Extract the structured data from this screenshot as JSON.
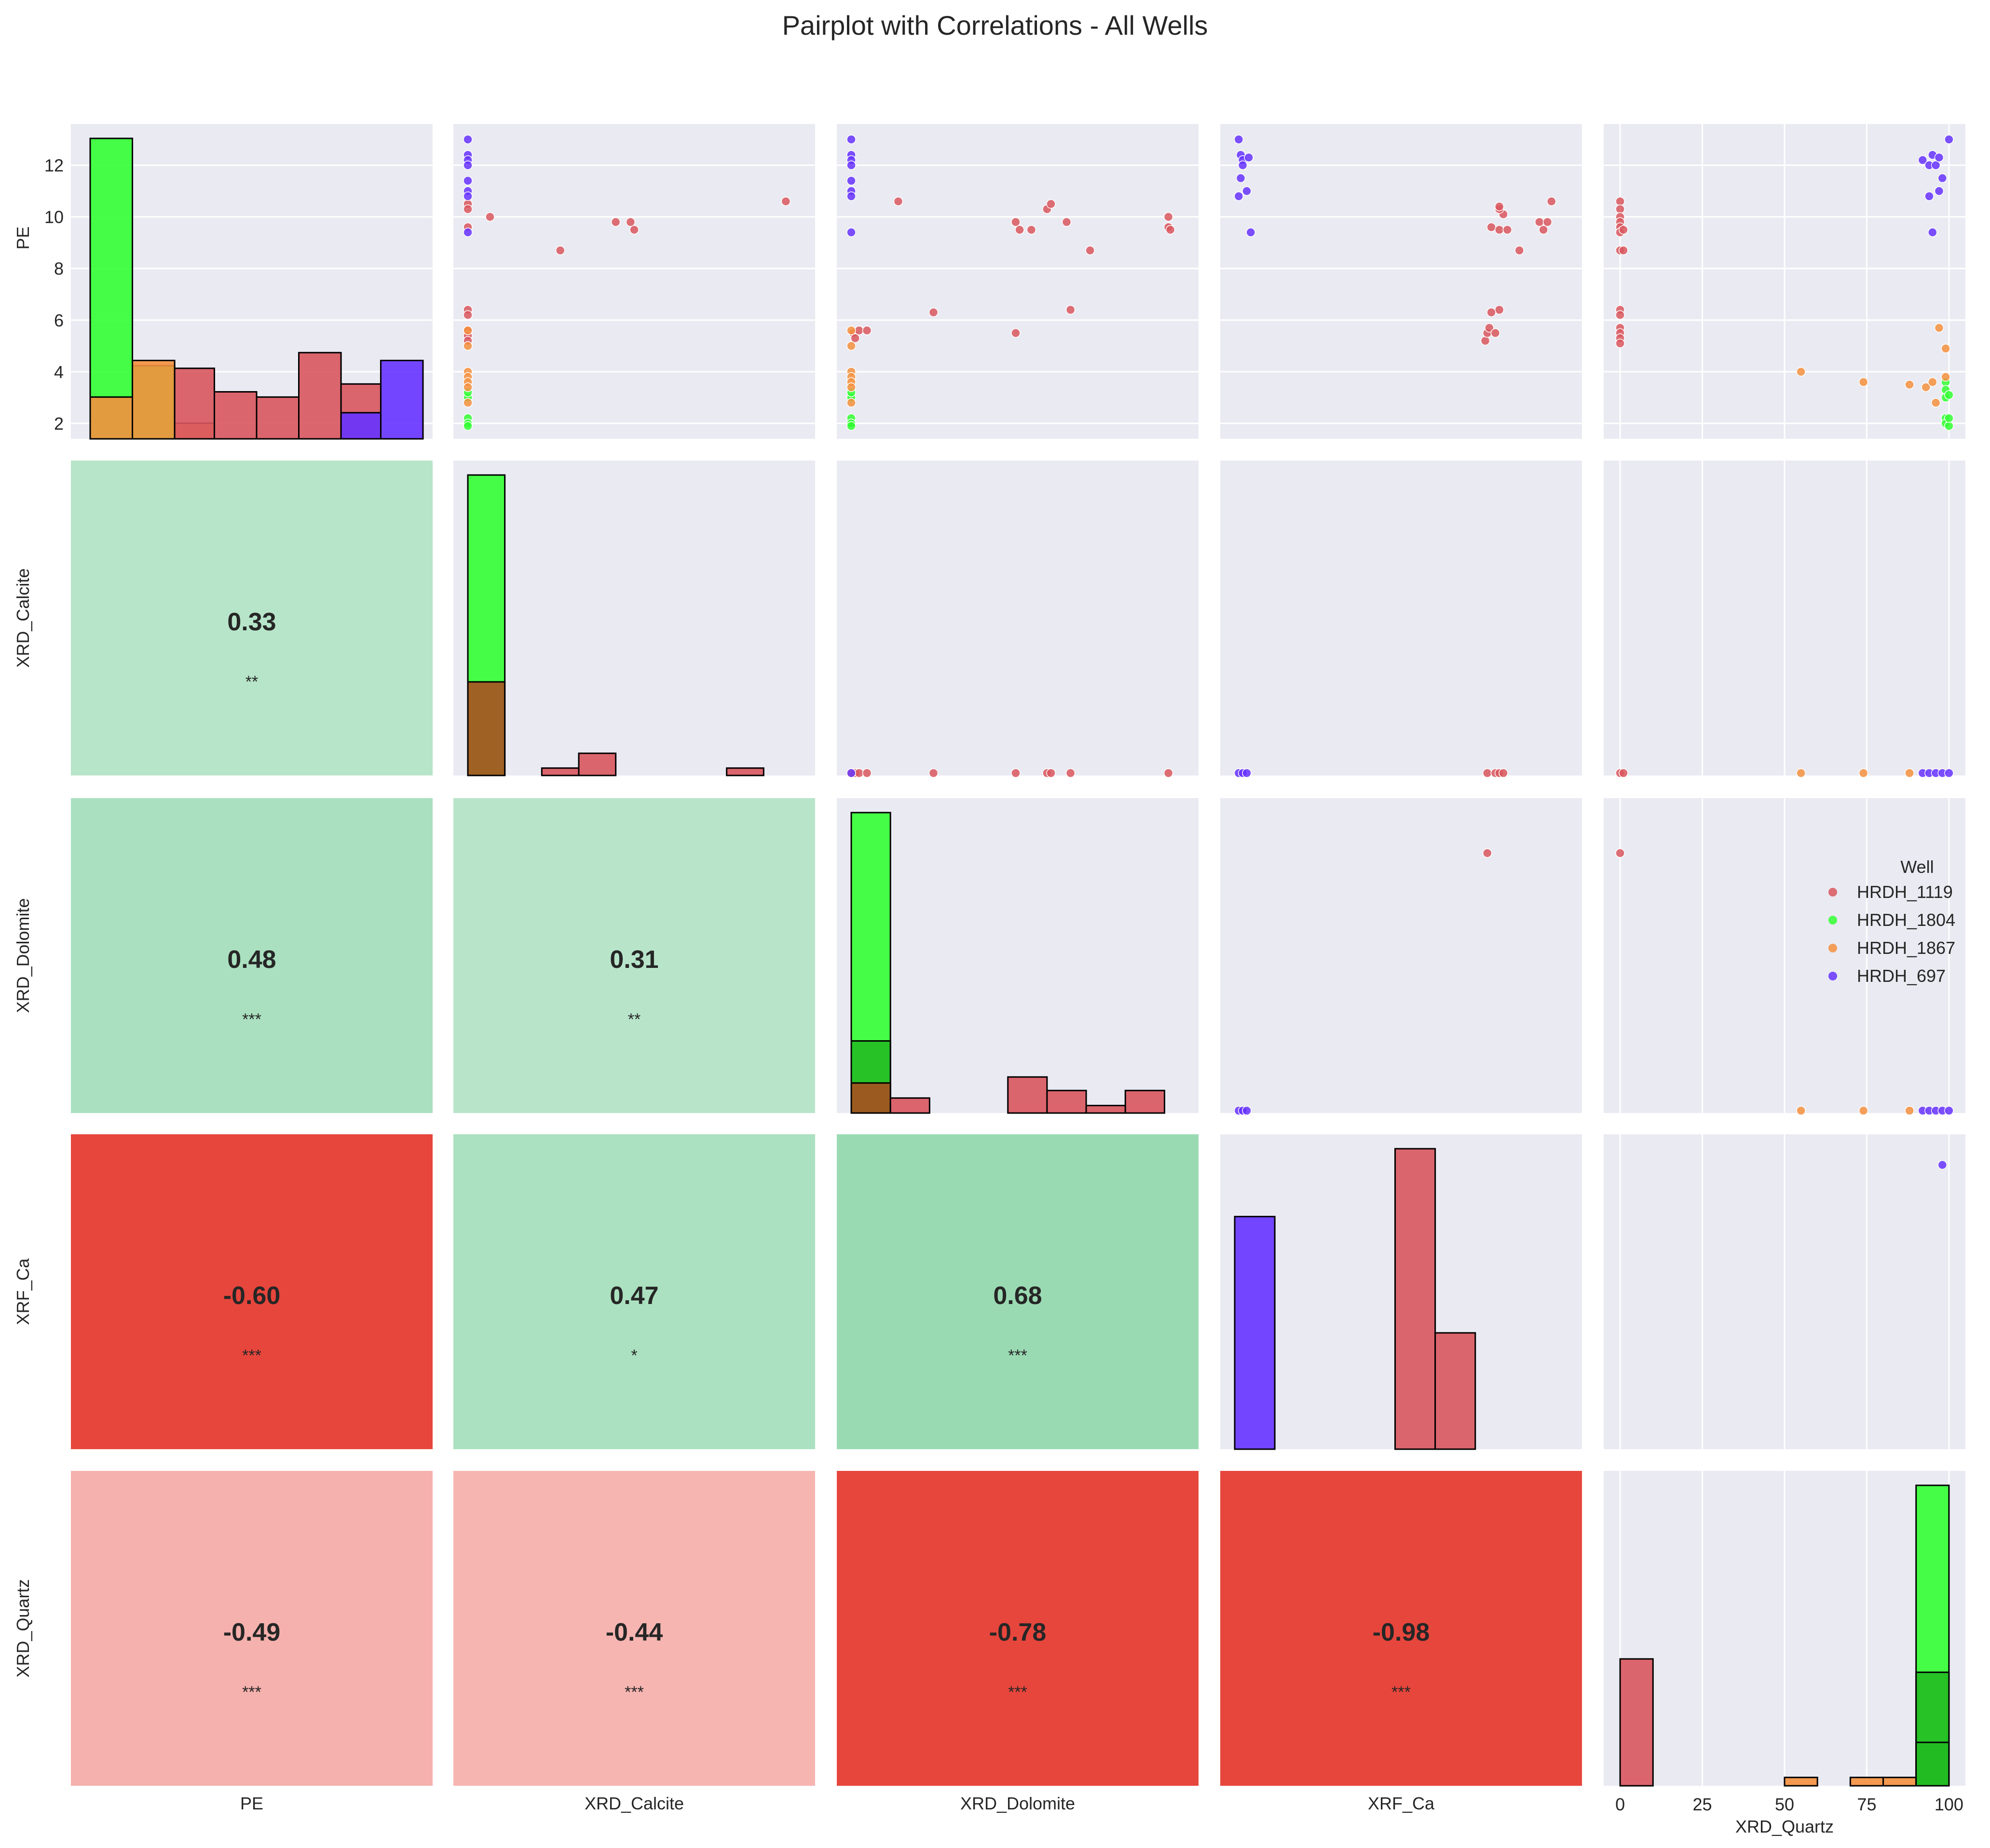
{
  "figure": {
    "title": "Pairplot with Correlations - All Wells"
  },
  "colors": {
    "panel_bg": "#EAEAF2",
    "grid": "#FFFFFF",
    "HRDH_1119": "#D9575E",
    "HRDH_1804": "#33FF33",
    "HRDH_1867": "#F4903E",
    "HRDH_697": "#6633FF",
    "overlap_brown": "#A85020",
    "overlap_dark_green": "#22BB22"
  },
  "legend": {
    "title": "Well",
    "placement": "center-right",
    "items": [
      {
        "label": "HRDH_1119",
        "color_key": "HRDH_1119"
      },
      {
        "label": "HRDH_1804",
        "color_key": "HRDH_1804"
      },
      {
        "label": "HRDH_1867",
        "color_key": "HRDH_1867"
      },
      {
        "label": "HRDH_697",
        "color_key": "HRDH_697"
      }
    ]
  },
  "chart_data": {
    "type": "pairplot",
    "variables": [
      "PE",
      "XRD_Calcite",
      "XRD_Dolomite",
      "XRF_Ca",
      "XRD_Quartz"
    ],
    "series_names": [
      "HRDH_1119",
      "HRDH_1804",
      "HRDH_1867",
      "HRDH_697"
    ],
    "y_axis": {
      "variable": "PE",
      "ticks": [
        2,
        4,
        6,
        8,
        10,
        12
      ],
      "range": [
        1.4,
        13.6
      ]
    },
    "x_axis": {
      "variable": "XRD_Quartz",
      "ticks": [
        0,
        25,
        50,
        75,
        100
      ],
      "range": [
        -5,
        105
      ]
    },
    "correlations": [
      {
        "row": "XRD_Calcite",
        "col": "PE",
        "r": "0.33",
        "sig": "**",
        "value": 0.33
      },
      {
        "row": "XRD_Dolomite",
        "col": "PE",
        "r": "0.48",
        "sig": "***",
        "value": 0.48
      },
      {
        "row": "XRD_Dolomite",
        "col": "XRD_Calcite",
        "r": "0.31",
        "sig": "**",
        "value": 0.31
      },
      {
        "row": "XRF_Ca",
        "col": "PE",
        "r": "-0.60",
        "sig": "***",
        "value": -0.6
      },
      {
        "row": "XRF_Ca",
        "col": "XRD_Calcite",
        "r": "0.47",
        "sig": "*",
        "value": 0.47
      },
      {
        "row": "XRF_Ca",
        "col": "XRD_Dolomite",
        "r": "0.68",
        "sig": "***",
        "value": 0.68
      },
      {
        "row": "XRD_Quartz",
        "col": "PE",
        "r": "-0.49",
        "sig": "***",
        "value": -0.49
      },
      {
        "row": "XRD_Quartz",
        "col": "XRD_Calcite",
        "r": "-0.44",
        "sig": "***",
        "value": -0.44
      },
      {
        "row": "XRD_Quartz",
        "col": "XRD_Dolomite",
        "r": "-0.78",
        "sig": "***",
        "value": -0.78
      },
      {
        "row": "XRD_Quartz",
        "col": "XRF_Ca",
        "r": "-0.98",
        "sig": "***",
        "value": -0.98
      }
    ],
    "histograms": {
      "PE": [
        {
          "series": "HRDH_1804",
          "color_key": "HRDH_1804",
          "bins": [
            [
              1.4,
              3.1,
              11.5
            ],
            [
              3.1,
              4.8,
              2.8
            ]
          ]
        },
        {
          "series": "HRDH_1867",
          "color_key": "HRDH_1867",
          "bins": [
            [
              1.4,
              3.1,
              1.6
            ],
            [
              3.1,
              4.8,
              3.0
            ],
            [
              4.8,
              6.4,
              0.6
            ]
          ]
        },
        {
          "series": "HRDH_1119",
          "color_key": "HRDH_1119",
          "bins": [
            [
              4.8,
              6.4,
              2.7
            ],
            [
              6.4,
              8.1,
              1.8
            ],
            [
              8.1,
              9.8,
              1.6
            ],
            [
              9.8,
              11.5,
              3.3
            ],
            [
              11.5,
              13.1,
              2.1
            ]
          ]
        },
        {
          "series": "HRDH_697",
          "color_key": "HRDH_697",
          "bins": [
            [
              11.5,
              13.1,
              1.0
            ],
            [
              13.1,
              14.8,
              3.0
            ]
          ]
        }
      ],
      "XRD_Calcite": [
        {
          "series": "HRDH_1804",
          "color_key": "HRDH_1804",
          "bins": [
            [
              0,
              1,
              12.2
            ]
          ]
        },
        {
          "series": "overlap",
          "color_key": "overlap_brown",
          "bins": [
            [
              0,
              1,
              3.8
            ]
          ]
        },
        {
          "series": "HRDH_1119",
          "color_key": "HRDH_1119",
          "bins": [
            [
              2,
              3,
              0.3
            ],
            [
              3,
              4,
              0.9
            ],
            [
              7,
              8,
              0.3
            ]
          ]
        }
      ],
      "XRD_Dolomite": [
        {
          "series": "HRDH_1804",
          "color_key": "HRDH_1804",
          "bins": [
            [
              0,
              1,
              10.0
            ]
          ]
        },
        {
          "series": "overlap",
          "color_key": "overlap_dark_green",
          "bins": [
            [
              0,
              1,
              2.4
            ]
          ]
        },
        {
          "series": "overlap",
          "color_key": "overlap_brown",
          "bins": [
            [
              0,
              1,
              1.0
            ]
          ]
        },
        {
          "series": "HRDH_1119",
          "color_key": "HRDH_1119",
          "bins": [
            [
              1,
              2,
              0.5
            ],
            [
              4,
              5,
              1.2
            ],
            [
              5,
              6,
              0.75
            ],
            [
              6,
              7,
              0.25
            ],
            [
              7,
              8,
              0.75
            ]
          ]
        }
      ],
      "XRF_Ca": [
        {
          "series": "HRDH_697",
          "color_key": "HRDH_697",
          "bins": [
            [
              0,
              1,
              2.4
            ]
          ]
        },
        {
          "series": "HRDH_1119",
          "color_key": "HRDH_1119",
          "bins": [
            [
              4,
              5,
              3.1
            ],
            [
              5,
              6,
              1.2
            ]
          ]
        }
      ],
      "XRD_Quartz": [
        {
          "series": "HRDH_1119",
          "color_key": "HRDH_1119",
          "bins": [
            [
              0,
              10,
              3.8
            ]
          ]
        },
        {
          "series": "HRDH_1867",
          "color_key": "HRDH_1867",
          "bins": [
            [
              50,
              60,
              0.25
            ],
            [
              70,
              80,
              0.25
            ],
            [
              80,
              90,
              0.25
            ]
          ]
        },
        {
          "series": "HRDH_1804",
          "color_key": "HRDH_1804",
          "bins": [
            [
              90,
              100,
              9.0
            ]
          ]
        },
        {
          "series": "overlap",
          "color_key": "overlap_dark_green",
          "bins": [
            [
              90,
              100,
              3.4
            ]
          ]
        },
        {
          "series": "overlap",
          "color_key": "overlap_dark_green",
          "bins": [
            [
              90,
              100,
              1.3
            ]
          ]
        }
      ]
    },
    "scatter": {
      "PE~XRD_Calcite": {
        "HRDH_1119": [
          [
            0,
            10.5
          ],
          [
            0,
            10.3
          ],
          [
            0,
            9.6
          ],
          [
            0,
            6.4
          ],
          [
            0,
            6.2
          ],
          [
            0,
            5.6
          ],
          [
            0,
            5.4
          ],
          [
            0,
            5.2
          ],
          [
            0.6,
            10.0
          ],
          [
            2.5,
            8.7
          ],
          [
            4.0,
            9.8
          ],
          [
            4.4,
            9.8
          ],
          [
            4.5,
            9.5
          ],
          [
            8.6,
            10.6
          ]
        ],
        "HRDH_1804": [
          [
            0,
            2.2
          ],
          [
            0,
            2.0
          ],
          [
            0,
            1.9
          ],
          [
            0,
            3.0
          ],
          [
            0,
            3.2
          ]
        ],
        "HRDH_1867": [
          [
            0,
            5.0
          ],
          [
            0,
            4.0
          ],
          [
            0,
            3.8
          ],
          [
            0,
            3.6
          ],
          [
            0,
            3.4
          ],
          [
            0,
            2.8
          ],
          [
            0,
            5.6
          ]
        ],
        "HRDH_697": [
          [
            0,
            13.0
          ],
          [
            0,
            12.4
          ],
          [
            0,
            12.2
          ],
          [
            0,
            12.0
          ],
          [
            0,
            11.4
          ],
          [
            0,
            11.0
          ],
          [
            0,
            10.8
          ],
          [
            0,
            9.4
          ]
        ]
      },
      "PE~XRD_Dolomite": {
        "HRDH_1119": [
          [
            0.05,
            5.5
          ],
          [
            0.1,
            5.3
          ],
          [
            0.2,
            5.6
          ],
          [
            0.4,
            5.6
          ],
          [
            1.2,
            10.6
          ],
          [
            2.1,
            6.3
          ],
          [
            4.2,
            5.5
          ],
          [
            4.2,
            9.8
          ],
          [
            4.3,
            9.5
          ],
          [
            4.6,
            9.5
          ],
          [
            5.0,
            10.3
          ],
          [
            5.1,
            10.5
          ],
          [
            5.5,
            9.8
          ],
          [
            5.6,
            6.4
          ],
          [
            6.1,
            8.7
          ],
          [
            8.1,
            9.6
          ],
          [
            8.1,
            10.0
          ],
          [
            8.15,
            9.5
          ]
        ],
        "HRDH_1804": [
          [
            0,
            2.2
          ],
          [
            0,
            2.0
          ],
          [
            0,
            1.9
          ],
          [
            0,
            3.0
          ],
          [
            0,
            3.2
          ]
        ],
        "HRDH_1867": [
          [
            0,
            5.6
          ],
          [
            0,
            5.0
          ],
          [
            0,
            4.0
          ],
          [
            0,
            3.8
          ],
          [
            0,
            3.6
          ],
          [
            0,
            3.4
          ],
          [
            0,
            2.8
          ]
        ],
        "HRDH_697": [
          [
            0,
            13.0
          ],
          [
            0,
            12.4
          ],
          [
            0,
            12.2
          ],
          [
            0,
            12.0
          ],
          [
            0,
            11.4
          ],
          [
            0,
            11.0
          ],
          [
            0,
            10.8
          ],
          [
            0,
            9.4
          ]
        ]
      },
      "PE~XRF_Ca": {
        "HRDH_1119": [
          [
            6.25,
            5.2
          ],
          [
            6.3,
            5.5
          ],
          [
            6.35,
            5.7
          ],
          [
            6.5,
            5.5
          ],
          [
            6.6,
            6.4
          ],
          [
            6.4,
            6.3
          ],
          [
            6.4,
            9.6
          ],
          [
            6.6,
            9.5
          ],
          [
            6.7,
            10.1
          ],
          [
            6.6,
            10.3
          ],
          [
            6.6,
            10.4
          ],
          [
            6.8,
            9.5
          ],
          [
            7.1,
            8.7
          ],
          [
            7.6,
            9.8
          ],
          [
            7.7,
            9.5
          ],
          [
            7.8,
            9.8
          ],
          [
            7.9,
            10.6
          ]
        ],
        "HRDH_697": [
          [
            0.1,
            13.0
          ],
          [
            0.15,
            12.4
          ],
          [
            0.2,
            12.2
          ],
          [
            0.2,
            12.0
          ],
          [
            0.35,
            12.3
          ],
          [
            0.15,
            11.5
          ],
          [
            0.3,
            11.0
          ],
          [
            0.1,
            10.8
          ],
          [
            0.4,
            9.4
          ]
        ]
      },
      "PE~XRD_Quartz": {
        "HRDH_1119": [
          [
            0,
            10.6
          ],
          [
            0,
            10.3
          ],
          [
            0,
            10.0
          ],
          [
            0,
            9.8
          ],
          [
            0,
            9.6
          ],
          [
            0,
            9.4
          ],
          [
            1,
            9.5
          ],
          [
            0,
            8.7
          ],
          [
            1,
            8.7
          ],
          [
            0,
            6.4
          ],
          [
            0,
            6.2
          ],
          [
            0,
            5.7
          ],
          [
            0,
            5.5
          ],
          [
            0,
            5.3
          ],
          [
            0,
            5.1
          ]
        ],
        "HRDH_1804": [
          [
            99,
            3.6
          ],
          [
            99,
            3.3
          ],
          [
            99,
            3.0
          ],
          [
            100,
            3.1
          ],
          [
            99,
            2.2
          ],
          [
            99,
            2.0
          ],
          [
            100,
            1.9
          ],
          [
            100,
            2.2
          ]
        ],
        "HRDH_1867": [
          [
            55,
            4.0
          ],
          [
            74,
            3.6
          ],
          [
            88,
            3.5
          ],
          [
            93,
            3.4
          ],
          [
            95,
            3.6
          ],
          [
            96,
            2.8
          ],
          [
            97,
            5.7
          ],
          [
            99,
            4.9
          ],
          [
            99,
            3.8
          ]
        ],
        "HRDH_697": [
          [
            92,
            12.2
          ],
          [
            94,
            12.0
          ],
          [
            95,
            12.4
          ],
          [
            96,
            12.0
          ],
          [
            97,
            12.3
          ],
          [
            98,
            11.5
          ],
          [
            97,
            11.0
          ],
          [
            94,
            10.8
          ],
          [
            95,
            9.4
          ],
          [
            100,
            13.0
          ]
        ]
      },
      "XRD_Calcite~XRD_Dolomite": {
        "HRDH_1119": [
          [
            0.05,
            0
          ],
          [
            0.1,
            0
          ],
          [
            0.2,
            0
          ],
          [
            0.4,
            0
          ],
          [
            2.1,
            0
          ],
          [
            4.2,
            0
          ],
          [
            5.0,
            0
          ],
          [
            5.1,
            0
          ],
          [
            5.6,
            0
          ],
          [
            8.1,
            0
          ]
        ],
        "HRDH_1867": [
          [
            0,
            0
          ]
        ],
        "HRDH_697": [
          [
            0,
            0
          ]
        ]
      },
      "XRD_Calcite~XRF_Ca": {
        "HRDH_1119": [
          [
            6.3,
            0
          ],
          [
            6.5,
            0
          ],
          [
            6.6,
            0
          ],
          [
            6.7,
            0
          ]
        ],
        "HRDH_697": [
          [
            0.1,
            0
          ],
          [
            0.2,
            0
          ],
          [
            0.3,
            0
          ]
        ]
      },
      "XRD_Calcite~XRD_Quartz": {
        "HRDH_1119": [
          [
            0,
            0
          ],
          [
            1,
            0
          ]
        ],
        "HRDH_1867": [
          [
            55,
            0
          ],
          [
            74,
            0
          ],
          [
            88,
            0
          ]
        ],
        "HRDH_697": [
          [
            92,
            0
          ],
          [
            94,
            0
          ],
          [
            96,
            0
          ],
          [
            98,
            0
          ],
          [
            100,
            0
          ]
        ]
      },
      "XRD_Dolomite~XRF_Ca": {
        "HRDH_1119": [
          [
            6.3,
            7.3
          ]
        ],
        "HRDH_697": [
          [
            0.1,
            0
          ],
          [
            0.2,
            0
          ],
          [
            0.3,
            0
          ]
        ]
      },
      "XRD_Dolomite~XRD_Quartz": {
        "HRDH_1119": [
          [
            0,
            7.3
          ]
        ],
        "HRDH_1867": [
          [
            55,
            0
          ],
          [
            74,
            0
          ],
          [
            88,
            0
          ]
        ],
        "HRDH_697": [
          [
            92,
            0
          ],
          [
            94,
            0
          ],
          [
            96,
            0
          ],
          [
            98,
            0
          ],
          [
            100,
            0
          ]
        ]
      },
      "XRF_Ca~XRD_Quartz": {
        "HRDH_697": [
          [
            98,
            7.8
          ]
        ]
      }
    }
  }
}
